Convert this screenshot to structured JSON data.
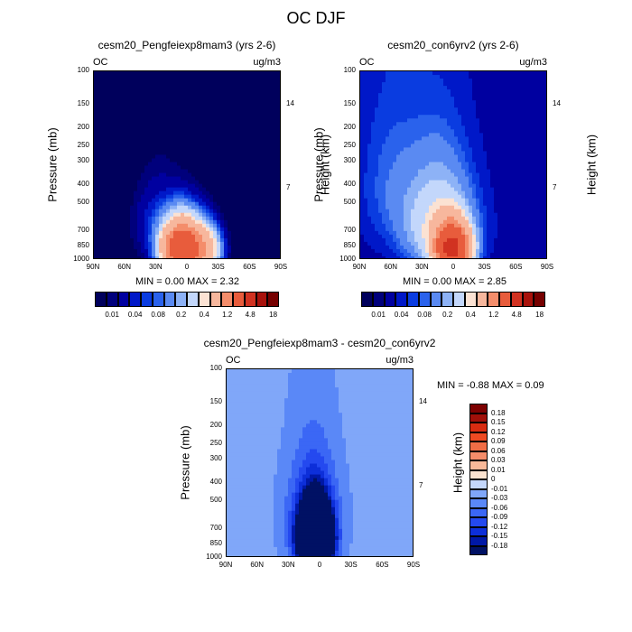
{
  "title": "OC DJF",
  "colors": {
    "seq": [
      "#00005c",
      "#00007c",
      "#0000a0",
      "#0018c8",
      "#0a3ce0",
      "#2a62ec",
      "#5a8af2",
      "#8db2f6",
      "#c3d7fb",
      "#fbe2d3",
      "#f7b79d",
      "#f48d6b",
      "#e85c3c",
      "#d13221",
      "#a8120c",
      "#760000"
    ],
    "div": [
      "#001164",
      "#0018a6",
      "#0d2fd9",
      "#2449ef",
      "#3b67f5",
      "#5a88f7",
      "#80a7f9",
      "#c4d7fb",
      "#fbe3d0",
      "#f9b999",
      "#f58d6a",
      "#f06d45",
      "#ee4a22",
      "#d82c11",
      "#a01009",
      "#7d0101"
    ]
  },
  "panels": [
    {
      "title": "cesm20_Pengfeiexp8mam3 (yrs 2-6)",
      "var": "OC",
      "units": "ug/m3",
      "min_max": "MIN =   0.00   MAX =   2.32",
      "ylabel": "Pressure (mb)",
      "ylabel_right": "Height (km)"
    },
    {
      "title": "cesm20_con6yrv2 (yrs 2-6)",
      "var": "OC",
      "units": "ug/m3",
      "min_max": "MIN =   0.00   MAX =   2.85",
      "ylabel": "Pressure (mb)",
      "ylabel_right": "Height (km)"
    },
    {
      "title": "cesm20_Pengfeiexp8mam3 - cesm20_con6yrv2",
      "var": "OC",
      "units": "ug/m3",
      "min_max": "MIN =  -0.88   MAX =    0.09",
      "ylabel": "Pressure (mb)",
      "ylabel_right": "Height (km)"
    }
  ],
  "chart_data": [
    {
      "type": "heatmap",
      "title": "cesm20_Pengfeiexp8mam3 (yrs 2-6)",
      "xlabel": "",
      "ylabel": "Pressure (mb)",
      "y2label": "Height (km)",
      "x_ticks": [
        "90N",
        "60N",
        "30N",
        "0",
        "30S",
        "60S",
        "90S"
      ],
      "y_ticks": [
        "100",
        "150",
        "200",
        "250",
        "300",
        "400",
        "500",
        "700",
        "850",
        "1000"
      ],
      "y2_ticks": [
        "14",
        "7"
      ],
      "x_range": [
        90,
        -90
      ],
      "y_range": [
        100,
        1000
      ],
      "colorbar_labels": [
        "0.01",
        "0.04",
        "0.08",
        "0.2",
        "0.4",
        "1.2",
        "4.8",
        "18"
      ],
      "min": 0.0,
      "max": 2.32,
      "field": {
        "bg": 0.001,
        "blobs": [
          [
            5,
            870,
            16,
            220,
            2.32
          ],
          [
            -18,
            880,
            12,
            200,
            0.5
          ],
          [
            28,
            640,
            20,
            260,
            0.06
          ]
        ]
      }
    },
    {
      "type": "heatmap",
      "title": "cesm20_con6yrv2 (yrs 2-6)",
      "xlabel": "",
      "ylabel": "Pressure (mb)",
      "y2label": "Height (km)",
      "x_ticks": [
        "90N",
        "60N",
        "30N",
        "0",
        "30S",
        "60S",
        "90S"
      ],
      "y_ticks": [
        "100",
        "150",
        "200",
        "250",
        "300",
        "400",
        "500",
        "700",
        "850",
        "1000"
      ],
      "y2_ticks": [
        "14",
        "7"
      ],
      "x_range": [
        90,
        -90
      ],
      "y_range": [
        100,
        1000
      ],
      "colorbar_labels": [
        "0.01",
        "0.04",
        "0.08",
        "0.2",
        "0.4",
        "1.2",
        "4.8",
        "18"
      ],
      "min": 0.0,
      "max": 2.85,
      "field": {
        "bg": 0.03,
        "blobs": [
          [
            2,
            860,
            14,
            200,
            2.85
          ],
          [
            15,
            650,
            30,
            350,
            0.3
          ],
          [
            60,
            400,
            30,
            350,
            0.06
          ]
        ]
      }
    },
    {
      "type": "heatmap",
      "title": "cesm20_Pengfeiexp8mam3 - cesm20_con6yrv2",
      "xlabel": "",
      "ylabel": "Pressure (mb)",
      "y2label": "Height (km)",
      "x_ticks": [
        "90N",
        "60N",
        "30N",
        "0",
        "30S",
        "60S",
        "90S"
      ],
      "y_ticks": [
        "100",
        "150",
        "200",
        "250",
        "300",
        "400",
        "500",
        "700",
        "850",
        "1000"
      ],
      "y2_ticks": [
        "14",
        "7"
      ],
      "x_range": [
        90,
        -90
      ],
      "y_range": [
        100,
        1000
      ],
      "colorbar_labels": [
        "0.18",
        "0.15",
        "0.12",
        "0.09",
        "0.06",
        "0.03",
        "0.01",
        "0",
        "-0.01",
        "-0.03",
        "-0.06",
        "-0.09",
        "-0.12",
        "-0.15",
        "-0.18"
      ],
      "min": -0.88,
      "max": 0.09,
      "field": {
        "bg": -0.015,
        "blobs": [
          [
            5,
            800,
            14,
            280,
            -0.8
          ],
          [
            8,
            620,
            28,
            450,
            -0.1
          ]
        ]
      }
    }
  ]
}
